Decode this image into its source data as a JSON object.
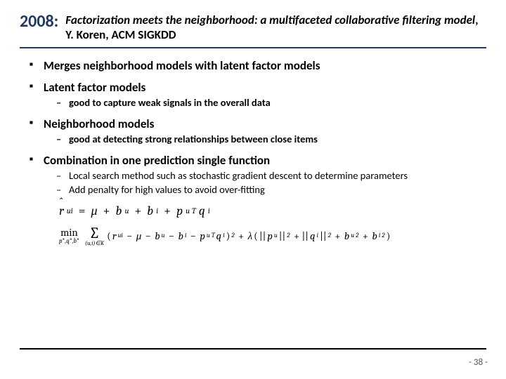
{
  "header": {
    "year": "2008:",
    "title_italic": "Factorization meets the neighborhood: a multifaceted collaborative filtering model",
    "title_rest": ", Y. Koren, ACM SIGKDD"
  },
  "bullets": [
    {
      "text": "Merges neighborhood models with latent factor models",
      "children": []
    },
    {
      "text": "Latent factor models",
      "children_bold": true,
      "children": [
        "good to capture weak signals in the overall data"
      ]
    },
    {
      "text": "Neighborhood models",
      "children_bold": true,
      "children": [
        "good at detecting strong relationships between close items"
      ]
    },
    {
      "text": "Combination in one prediction single function",
      "children_bold": false,
      "children": [
        "Local search method such as stochastic gradient descent to determine parameters",
        "Add penalty for high values to avoid over-fitting"
      ]
    }
  ],
  "colors": {
    "accent": "#1f3864",
    "text": "#000000",
    "page_num": "#595959",
    "background": "#ffffff"
  },
  "footer": {
    "page": "- 38 -"
  }
}
